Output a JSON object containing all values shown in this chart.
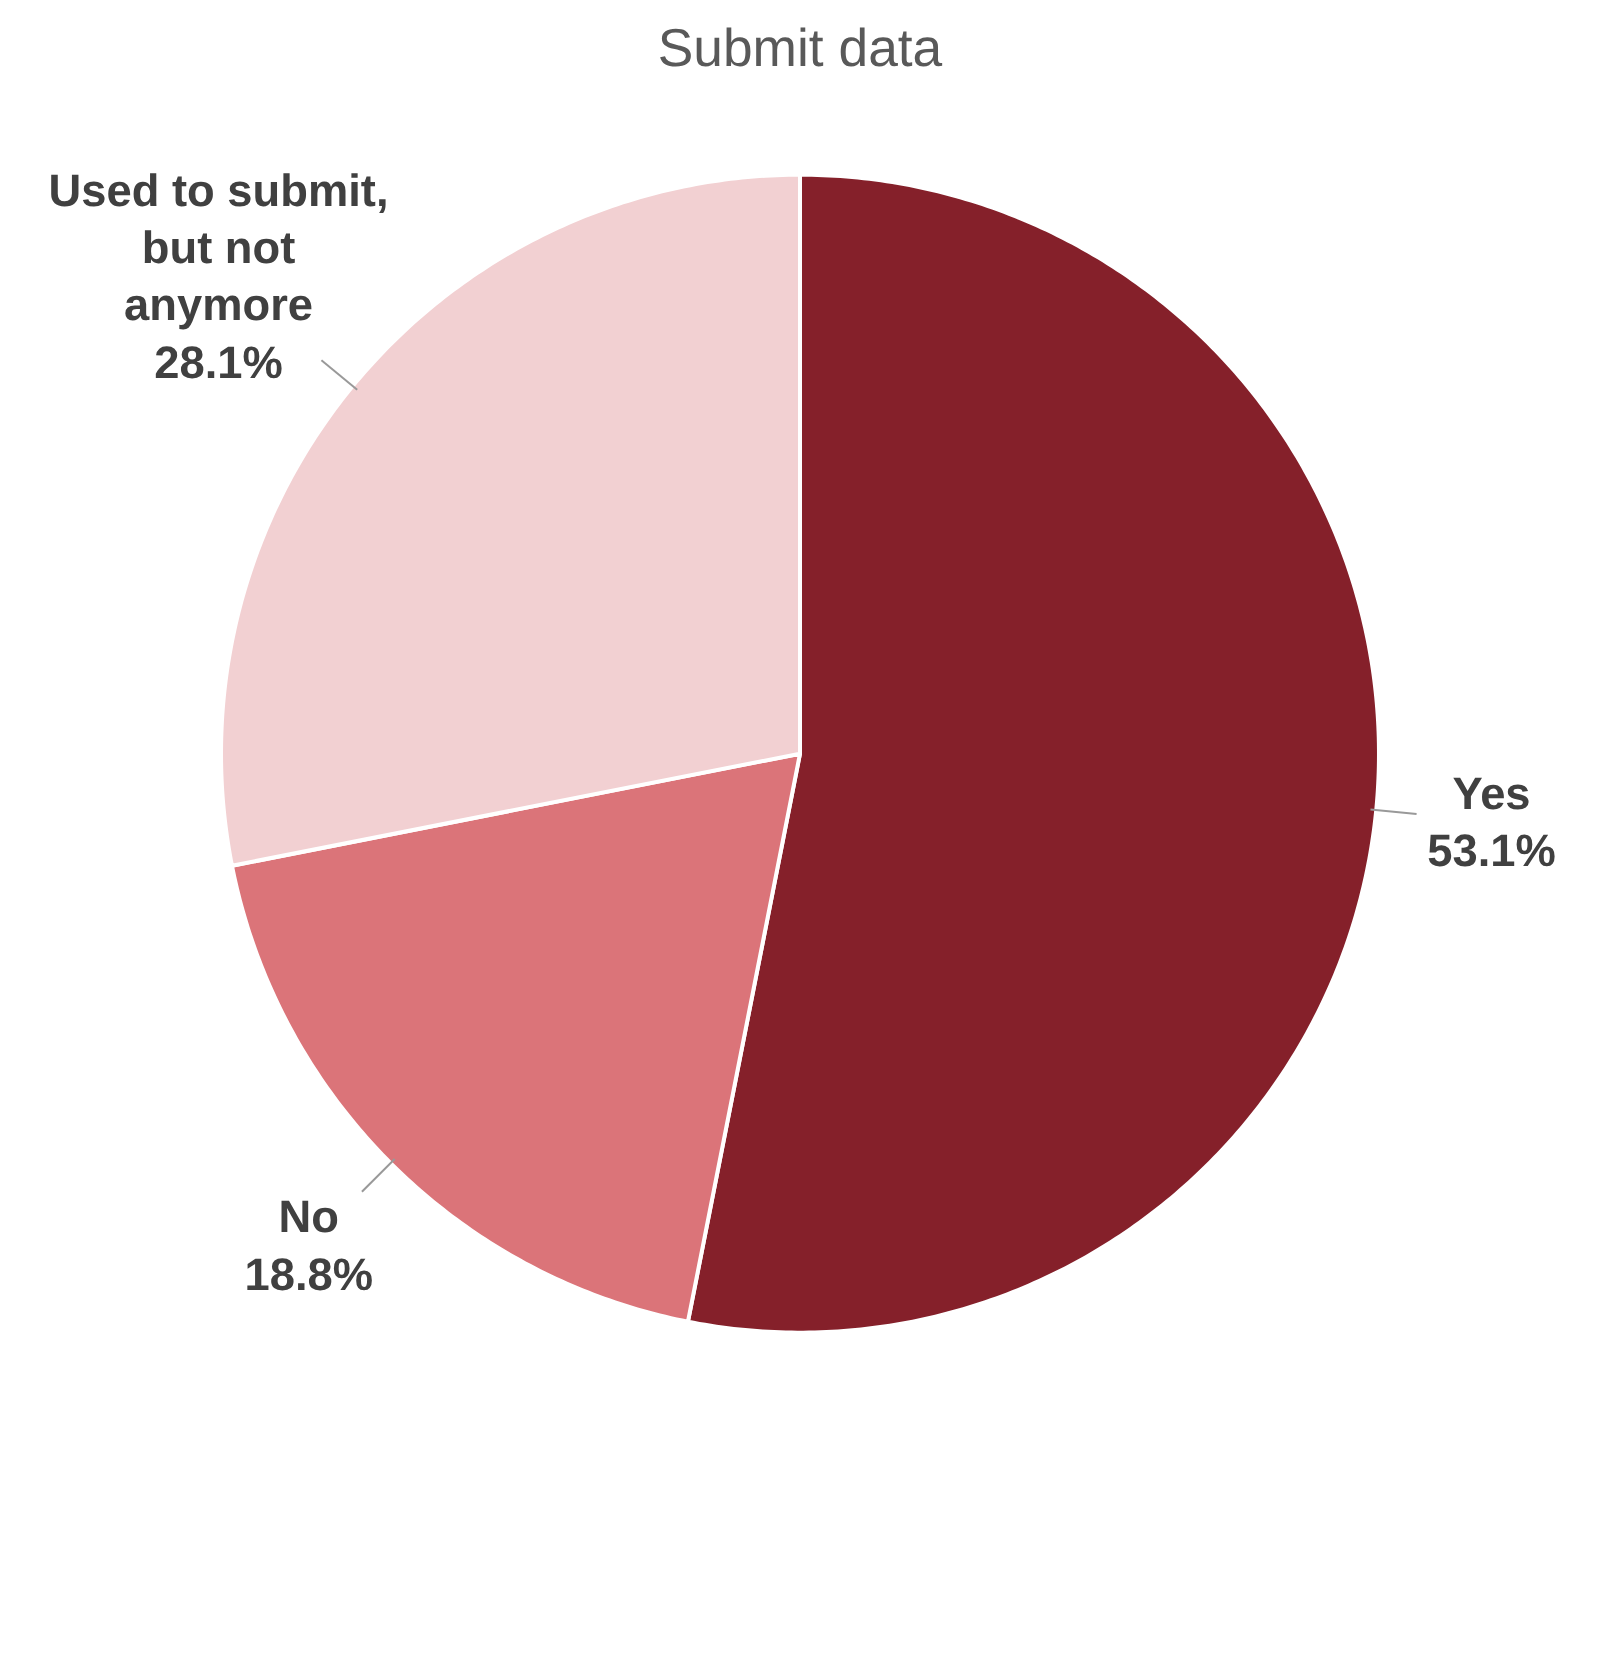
{
  "chart_data": {
    "type": "pie",
    "title": "Submit data",
    "categories": [
      "Yes",
      "No",
      "Used to submit,\nbut not\nanymore"
    ],
    "values": [
      53.1,
      18.8,
      28.1
    ],
    "value_labels": [
      "53.1%",
      "18.8%",
      "28.1%"
    ],
    "colors": [
      "#85202a",
      "#db7479",
      "#f2d0d2"
    ]
  }
}
